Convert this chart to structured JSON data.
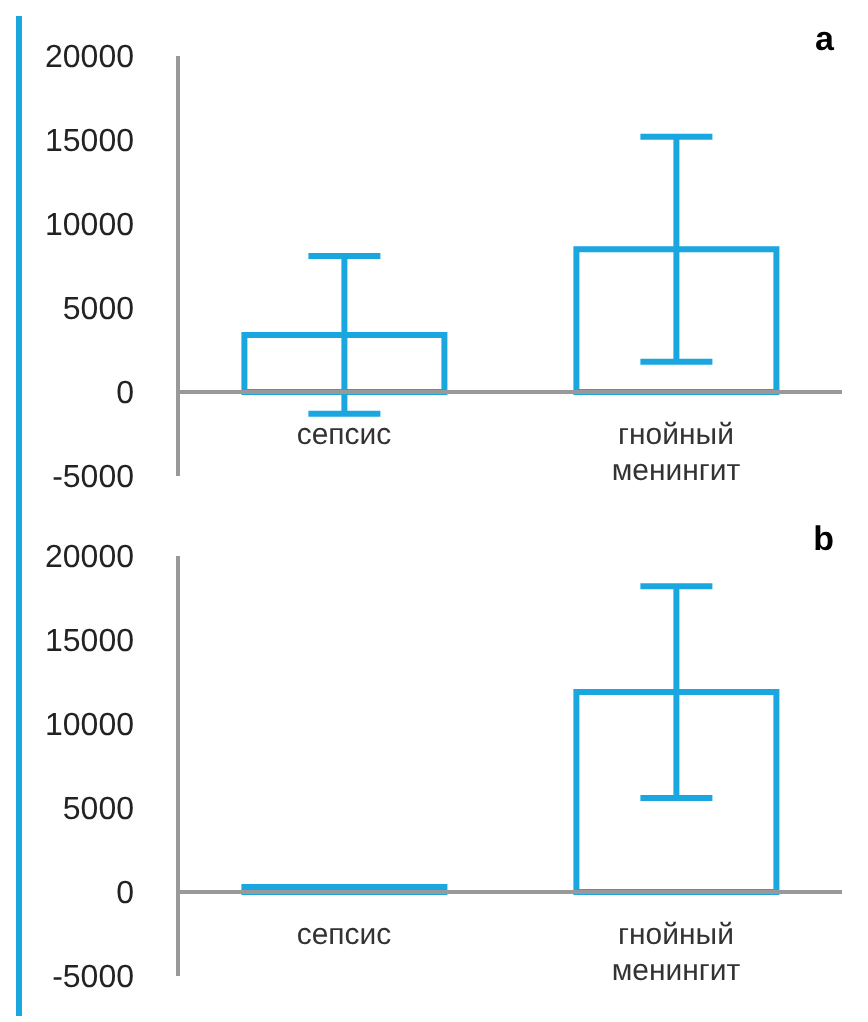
{
  "chart_data": [
    {
      "type": "bar",
      "title": "a",
      "categories": [
        "сепсис",
        "гнойный менингит"
      ],
      "values": [
        3400,
        8500
      ],
      "errors": [
        4700,
        6700
      ],
      "color": "#1aa7e0",
      "ylim": [
        -5000,
        20000
      ],
      "yticks": [
        -5000,
        0,
        5000,
        10000,
        15000,
        20000
      ],
      "legend": false
    },
    {
      "type": "bar",
      "title": "b",
      "categories": [
        "сепсис",
        "гнойный менингит"
      ],
      "values": [
        300,
        11900
      ],
      "errors": [
        null,
        6300
      ],
      "color": "#1aa7e0",
      "ylim": [
        -5000,
        20000
      ],
      "yticks": [
        -5000,
        0,
        5000,
        10000,
        15000,
        20000
      ],
      "legend": false
    }
  ]
}
